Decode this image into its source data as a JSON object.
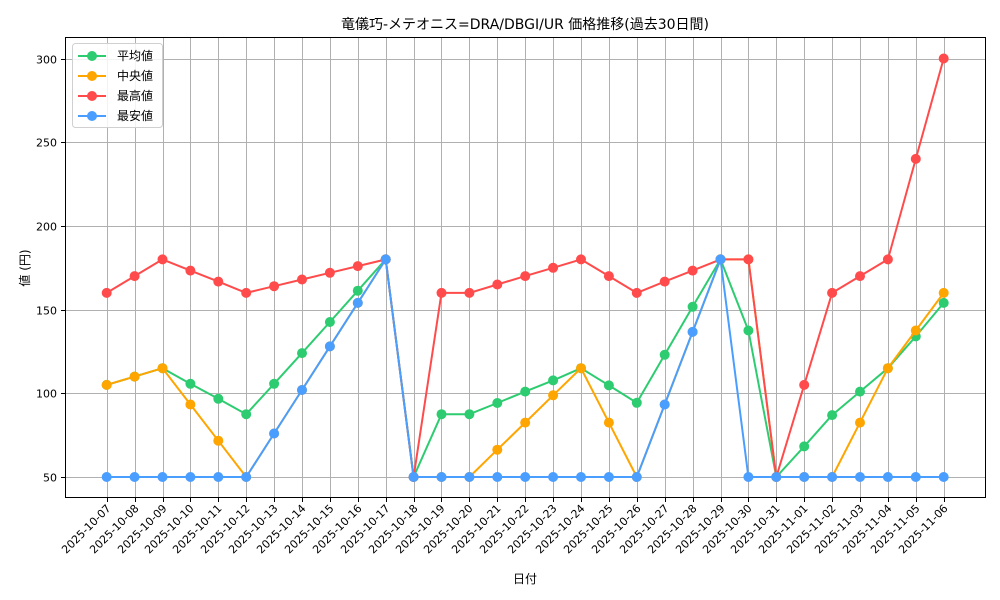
{
  "chart_data": {
    "type": "line",
    "title": "竜儀巧-メテオニス=DRA/DBGI/UR 価格推移(過去30日間)",
    "xlabel": "日付",
    "ylabel": "値 (円)",
    "ylim": [
      38,
      312
    ],
    "yticks": [
      50,
      100,
      150,
      200,
      250,
      300
    ],
    "grid": true,
    "legend_position": "upper left",
    "categories": [
      "2025-10-07",
      "2025-10-08",
      "2025-10-09",
      "2025-10-10",
      "2025-10-11",
      "2025-10-12",
      "2025-10-13",
      "2025-10-14",
      "2025-10-15",
      "2025-10-16",
      "2025-10-17",
      "2025-10-18",
      "2025-10-19",
      "2025-10-20",
      "2025-10-21",
      "2025-10-22",
      "2025-10-23",
      "2025-10-24",
      "2025-10-25",
      "2025-10-26",
      "2025-10-27",
      "2025-10-28",
      "2025-10-29",
      "2025-10-30",
      "2025-10-31",
      "2025-11-01",
      "2025-11-02",
      "2025-11-03",
      "2025-11-04",
      "2025-11-05",
      "2025-11-06"
    ],
    "series": [
      {
        "name": "平均値",
        "color": "#2ecc71",
        "values": [
          105,
          110,
          115,
          105.7,
          96.7,
          87.5,
          105.7,
          124,
          142.6,
          161.3,
          180,
          50,
          87.5,
          87.5,
          94.2,
          101,
          107.7,
          115,
          104.7,
          94.3,
          123,
          151.7,
          180,
          137.5,
          50,
          68.3,
          87,
          101,
          115,
          134,
          154
        ]
      },
      {
        "name": "中央値",
        "color": "#ffa500",
        "values": [
          105,
          110,
          115,
          93.3,
          71.7,
          50,
          76,
          102,
          128,
          154,
          180,
          50,
          50,
          50,
          66.3,
          82.5,
          98.8,
          115,
          82.5,
          50,
          93.3,
          136.7,
          180,
          180,
          50,
          50,
          50,
          82.5,
          115,
          137.5,
          160
        ]
      },
      {
        "name": "最高値",
        "color": "#ff4b4b",
        "values": [
          160,
          170,
          180,
          173.3,
          166.7,
          160,
          164,
          168,
          172,
          176,
          180,
          50,
          160,
          160,
          165,
          170,
          175,
          180,
          170,
          160,
          166.7,
          173.3,
          180,
          180,
          50,
          105,
          160,
          170,
          180,
          240,
          300
        ]
      },
      {
        "name": "最安値",
        "color": "#4a9eff",
        "values": [
          50,
          50,
          50,
          50,
          50,
          50,
          76,
          102,
          128,
          154,
          180,
          50,
          50,
          50,
          50,
          50,
          50,
          50,
          50,
          50,
          93.3,
          136.7,
          180,
          50,
          50,
          50,
          50,
          50,
          50,
          50,
          50
        ]
      }
    ]
  }
}
